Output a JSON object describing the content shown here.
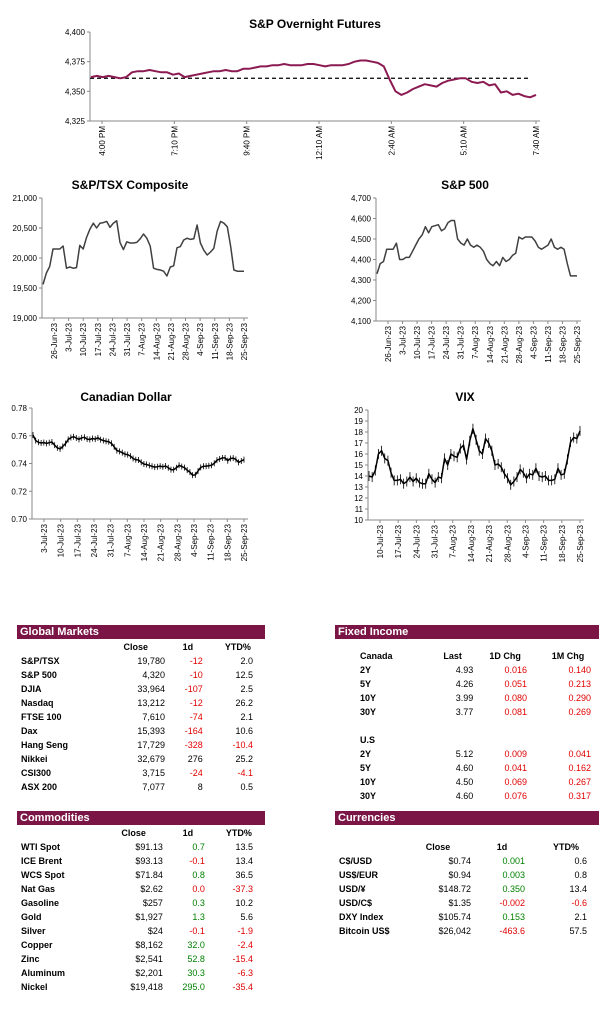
{
  "charts": [
    {
      "id": "sp-overnight",
      "title": "S&P Overnight Futures",
      "type": "line",
      "y_ticks": [
        "4,400",
        "4,375",
        "4,350",
        "4,325"
      ],
      "ylim": [
        4325,
        4400
      ],
      "x_ticks": [
        "4:00 PM",
        "7:10 PM",
        "9:40 PM",
        "12:10 AM",
        "2:40 AM",
        "5:10 AM",
        "7:40 AM"
      ],
      "reference_level": 4361,
      "series": [
        {
          "values": [
            4362,
            4363,
            4362,
            4363,
            4362,
            4361,
            4362,
            4366,
            4367,
            4367,
            4368,
            4367,
            4366,
            4366,
            4364,
            4365,
            4362,
            4363,
            4364,
            4365,
            4366,
            4367,
            4367,
            4368,
            4367,
            4367,
            4369,
            4369,
            4370,
            4371,
            4371,
            4372,
            4372,
            4373,
            4372,
            4372,
            4372,
            4373,
            4373,
            4372,
            4371,
            4372,
            4372,
            4372,
            4373,
            4375,
            4376,
            4376,
            4375,
            4374,
            4371,
            4360,
            4350,
            4347,
            4349,
            4352,
            4354,
            4356,
            4355,
            4354,
            4357,
            4359,
            4360,
            4361,
            4361,
            4358,
            4357,
            4358,
            4355,
            4356,
            4349,
            4350,
            4347,
            4348,
            4346,
            4345,
            4347
          ]
        }
      ],
      "color": "#8c1a52"
    },
    {
      "id": "tsx",
      "title": "S&P/TSX Composite",
      "type": "line",
      "y_ticks": [
        "21,000",
        "20,500",
        "20,000",
        "19,500",
        "19,000"
      ],
      "ylim": [
        19000,
        21000
      ],
      "x_ticks": [
        "26-Jun-23",
        "3-Jul-23",
        "10-Jul-23",
        "17-Jul-23",
        "24-Jul-23",
        "31-Jul-23",
        "7-Aug-23",
        "14-Aug-23",
        "21-Aug-23",
        "28-Aug-23",
        "4-Sep-23",
        "11-Sep-23",
        "18-Sep-23",
        "25-Sep-23"
      ],
      "series": [
        {
          "values": [
            19560,
            19750,
            19860,
            20150,
            20150,
            20150,
            20200,
            19830,
            19850,
            19830,
            19840,
            20210,
            20150,
            20340,
            20480,
            20580,
            20500,
            20580,
            20590,
            20610,
            20510,
            20580,
            20620,
            20260,
            20140,
            20270,
            20250,
            20250,
            20260,
            20320,
            20400,
            20330,
            20200,
            19830,
            19810,
            19800,
            19780,
            19700,
            19850,
            19870,
            20170,
            20190,
            20300,
            20330,
            20310,
            20320,
            20550,
            20250,
            20130,
            20050,
            20100,
            20160,
            20450,
            20610,
            20580,
            20520,
            20200,
            19800,
            19780,
            19780,
            19780
          ]
        }
      ],
      "color": "#404040"
    },
    {
      "id": "sp500",
      "title": "S&P 500",
      "type": "line",
      "y_ticks": [
        "4,700",
        "4,600",
        "4,500",
        "4,400",
        "4,300",
        "4,200",
        "4,100"
      ],
      "ylim": [
        4100,
        4700
      ],
      "x_ticks": [
        "26-Jun-23",
        "3-Jul-23",
        "10-Jul-23",
        "17-Jul-23",
        "24-Jul-23",
        "31-Jul-23",
        "7-Aug-23",
        "14-Aug-23",
        "21-Aug-23",
        "28-Aug-23",
        "4-Sep-23",
        "11-Sep-23",
        "18-Sep-23",
        "25-Sep-23"
      ],
      "series": [
        {
          "values": [
            4330,
            4380,
            4390,
            4450,
            4450,
            4450,
            4480,
            4400,
            4400,
            4410,
            4410,
            4440,
            4470,
            4500,
            4520,
            4560,
            4530,
            4560,
            4565,
            4570,
            4540,
            4550,
            4580,
            4590,
            4590,
            4500,
            4480,
            4470,
            4500,
            4470,
            4460,
            4470,
            4460,
            4440,
            4400,
            4380,
            4370,
            4390,
            4370,
            4410,
            4390,
            4400,
            4420,
            4430,
            4510,
            4500,
            4510,
            4510,
            4510,
            4490,
            4460,
            4450,
            4460,
            4470,
            4500,
            4460,
            4450,
            4460,
            4450,
            4380,
            4320,
            4320,
            4320
          ]
        }
      ],
      "color": "#404040"
    },
    {
      "id": "cad",
      "title": "Canadian Dollar",
      "type": "line",
      "y_ticks": [
        "0.78",
        "0.76",
        "0.74",
        "0.72",
        "0.70"
      ],
      "ylim": [
        0.7,
        0.78
      ],
      "x_ticks": [
        "3-Jul-23",
        "10-Jul-23",
        "17-Jul-23",
        "24-Jul-23",
        "31-Jul-23",
        "7-Aug-23",
        "14-Aug-23",
        "21-Aug-23",
        "28-Aug-23",
        "4-Sep-23",
        "11-Sep-23",
        "18-Sep-23",
        "25-Sep-23"
      ],
      "series": [
        {
          "values": [
            0.7605,
            0.7565,
            0.7553,
            0.7548,
            0.7551,
            0.7545,
            0.755,
            0.7555,
            0.7532,
            0.7513,
            0.7505,
            0.7523,
            0.7543,
            0.7573,
            0.7587,
            0.7593,
            0.7584,
            0.7574,
            0.7585,
            0.7589,
            0.7576,
            0.7573,
            0.758,
            0.7576,
            0.7585,
            0.7572,
            0.7566,
            0.756,
            0.7557,
            0.7545,
            0.752,
            0.7493,
            0.7487,
            0.7478,
            0.7467,
            0.7464,
            0.7453,
            0.7436,
            0.7427,
            0.7425,
            0.7409,
            0.7396,
            0.7393,
            0.7386,
            0.738,
            0.7374,
            0.7377,
            0.7381,
            0.7376,
            0.7382,
            0.7369,
            0.7356,
            0.7355,
            0.7369,
            0.7387,
            0.7378,
            0.737,
            0.7352,
            0.7338,
            0.7316,
            0.7318,
            0.7345,
            0.7372,
            0.738,
            0.7381,
            0.7384,
            0.7387,
            0.7401,
            0.7424,
            0.7432,
            0.744,
            0.744,
            0.742,
            0.7436,
            0.7439,
            0.7429,
            0.7408,
            0.7418,
            0.7428
          ]
        }
      ],
      "color": "#000000"
    },
    {
      "id": "vix",
      "title": "VIX",
      "type": "line",
      "y_ticks": [
        "20",
        "19",
        "18",
        "17",
        "16",
        "15",
        "14",
        "13",
        "12",
        "11",
        "10"
      ],
      "ylim": [
        10,
        20
      ],
      "x_ticks": [
        "10-Jul-23",
        "17-Jul-23",
        "24-Jul-23",
        "31-Jul-23",
        "7-Aug-23",
        "14-Aug-23",
        "21-Aug-23",
        "28-Aug-23",
        "4-Sep-23",
        "11-Sep-23",
        "18-Sep-23",
        "25-Sep-23"
      ],
      "series": [
        {
          "values": [
            14.0,
            13.9,
            14.5,
            16.0,
            16.3,
            15.6,
            15.4,
            14.3,
            13.6,
            13.6,
            13.7,
            13.3,
            13.5,
            13.9,
            13.5,
            13.8,
            13.4,
            13.3,
            13.3,
            14.2,
            13.7,
            13.4,
            13.9,
            13.8,
            15.6,
            15.0,
            16.0,
            15.8,
            15.7,
            16.5,
            16.8,
            15.5,
            17.2,
            18.3,
            17.3,
            16.3,
            16.0,
            17.4,
            17.0,
            16.3,
            15.0,
            15.1,
            14.8,
            14.2,
            13.8,
            13.2,
            13.5,
            13.9,
            14.6,
            14.3,
            13.8,
            14.2,
            14.1,
            14.7,
            14.0,
            13.9,
            14.0,
            13.6,
            13.6,
            13.7,
            14.7,
            14.1,
            14.2,
            15.5,
            17.1,
            17.5,
            17.4,
            18.1
          ]
        }
      ],
      "color": "#000000"
    }
  ],
  "chart_data": [
    {
      "type": "line",
      "title": "S&P Overnight Futures",
      "ylim": [
        4325,
        4400
      ],
      "x_ticks": [
        "4:00 PM",
        "7:10 PM",
        "9:40 PM",
        "12:10 AM",
        "2:40 AM",
        "5:10 AM",
        "7:40 AM"
      ]
    },
    {
      "type": "line",
      "title": "S&P/TSX Composite",
      "ylim": [
        19000,
        21000
      ]
    },
    {
      "type": "line",
      "title": "S&P 500",
      "ylim": [
        4100,
        4700
      ]
    },
    {
      "type": "line",
      "title": "Canadian Dollar",
      "ylim": [
        0.7,
        0.78
      ]
    },
    {
      "type": "line",
      "title": "VIX",
      "ylim": [
        10,
        20
      ]
    }
  ],
  "global_markets": {
    "title": "Global Markets",
    "headers": [
      "Close",
      "1d",
      "YTD%"
    ],
    "rows": [
      {
        "name": "S&P/TSX",
        "close": "19,780",
        "d1": "-12",
        "ytd": "2.0",
        "d1_neg": true,
        "ytd_neg": false
      },
      {
        "name": "S&P 500",
        "close": "4,320",
        "d1": "-10",
        "ytd": "12.5",
        "d1_neg": true,
        "ytd_neg": false
      },
      {
        "name": "DJIA",
        "close": "33,964",
        "d1": "-107",
        "ytd": "2.5",
        "d1_neg": true,
        "ytd_neg": false
      },
      {
        "name": "Nasdaq",
        "close": "13,212",
        "d1": "-12",
        "ytd": "26.2",
        "d1_neg": true,
        "ytd_neg": false
      },
      {
        "name": "FTSE 100",
        "close": "7,610",
        "d1": "-74",
        "ytd": "2.1",
        "d1_neg": true,
        "ytd_neg": false
      },
      {
        "name": "Dax",
        "close": "15,393",
        "d1": "-164",
        "ytd": "10.6",
        "d1_neg": true,
        "ytd_neg": false
      },
      {
        "name": "Hang Seng",
        "close": "17,729",
        "d1": "-328",
        "ytd": "-10.4",
        "d1_neg": true,
        "ytd_neg": true
      },
      {
        "name": "Nikkei",
        "close": "32,679",
        "d1": "276",
        "ytd": "25.2",
        "d1_neg": false,
        "ytd_neg": false
      },
      {
        "name": "CSI300",
        "close": "3,715",
        "d1": "-24",
        "ytd": "-4.1",
        "d1_neg": true,
        "ytd_neg": true
      },
      {
        "name": "ASX 200",
        "close": "7,077",
        "d1": "8",
        "ytd": "0.5",
        "d1_neg": false,
        "ytd_neg": false
      }
    ]
  },
  "fixed_income": {
    "title": "Fixed Income",
    "headers": [
      "Canada",
      "Last",
      "1D Chg",
      "1M Chg"
    ],
    "canada": [
      {
        "name": "2Y",
        "last": "4.93",
        "d1": "0.016",
        "m1": "0.140"
      },
      {
        "name": "5Y",
        "last": "4.26",
        "d1": "0.051",
        "m1": "0.213"
      },
      {
        "name": "10Y",
        "last": "3.99",
        "d1": "0.080",
        "m1": "0.290"
      },
      {
        "name": "30Y",
        "last": "3.77",
        "d1": "0.081",
        "m1": "0.269"
      }
    ],
    "us_label": "U.S",
    "us": [
      {
        "name": "2Y",
        "last": "5.12",
        "d1": "0.009",
        "m1": "0.041"
      },
      {
        "name": "5Y",
        "last": "4.60",
        "d1": "0.041",
        "m1": "0.162"
      },
      {
        "name": "10Y",
        "last": "4.50",
        "d1": "0.069",
        "m1": "0.267"
      },
      {
        "name": "30Y",
        "last": "4.60",
        "d1": "0.076",
        "m1": "0.317"
      }
    ]
  },
  "commodities": {
    "title": "Commodities",
    "headers": [
      "Close",
      "1d",
      "YTD%"
    ],
    "rows": [
      {
        "name": "WTI Spot",
        "close": "$91.13",
        "d1": "0.7",
        "ytd": "13.5",
        "d1_neg": false,
        "ytd_neg": false
      },
      {
        "name": "ICE Brent",
        "close": "$93.13",
        "d1": "-0.1",
        "ytd": "13.4",
        "d1_neg": true,
        "ytd_neg": false
      },
      {
        "name": "WCS Spot",
        "close": "$71.84",
        "d1": "0.8",
        "ytd": "36.5",
        "d1_neg": false,
        "ytd_neg": false
      },
      {
        "name": "Nat Gas",
        "close": "$2.62",
        "d1": "0.0",
        "ytd": "-37.3",
        "d1_neg": true,
        "ytd_neg": true
      },
      {
        "name": "Gasoline",
        "close": "$257",
        "d1": "0.3",
        "ytd": "10.2",
        "d1_neg": false,
        "ytd_neg": false
      },
      {
        "name": "Gold",
        "close": "$1,927",
        "d1": "1.3",
        "ytd": "5.6",
        "d1_neg": false,
        "ytd_neg": false
      },
      {
        "name": "Silver",
        "close": "$24",
        "d1": "-0.1",
        "ytd": "-1.9",
        "d1_neg": true,
        "ytd_neg": true
      },
      {
        "name": "Copper",
        "close": "$8,162",
        "d1": "32.0",
        "ytd": "-2.4",
        "d1_neg": false,
        "ytd_neg": true
      },
      {
        "name": "Zinc",
        "close": "$2,541",
        "d1": "52.8",
        "ytd": "-15.4",
        "d1_neg": false,
        "ytd_neg": true
      },
      {
        "name": "Aluminum",
        "close": "$2,201",
        "d1": "30.3",
        "ytd": "-6.3",
        "d1_neg": false,
        "ytd_neg": true
      },
      {
        "name": "Nickel",
        "close": "$19,418",
        "d1": "295.0",
        "ytd": "-35.4",
        "d1_neg": false,
        "ytd_neg": true
      }
    ]
  },
  "currencies": {
    "title": "Currencies",
    "headers": [
      "Close",
      "1d",
      "YTD%"
    ],
    "rows": [
      {
        "name": "C$/USD",
        "close": "$0.74",
        "d1": "0.001",
        "ytd": "0.6",
        "d1_neg": false,
        "ytd_neg": false
      },
      {
        "name": "US$/EUR",
        "close": "$0.94",
        "d1": "0.003",
        "ytd": "0.8",
        "d1_neg": false,
        "ytd_neg": false
      },
      {
        "name": "USD/¥",
        "close": "$148.72",
        "d1": "0.350",
        "ytd": "13.4",
        "d1_neg": false,
        "ytd_neg": false
      },
      {
        "name": "USD/C$",
        "close": "$1.35",
        "d1": "-0.002",
        "ytd": "-0.6",
        "d1_neg": true,
        "ytd_neg": true
      },
      {
        "name": "DXY Index",
        "close": "$105.74",
        "d1": "0.153",
        "ytd": "2.1",
        "d1_neg": false,
        "ytd_neg": false
      },
      {
        "name": "Bitcoin US$",
        "close": "$26,042",
        "d1": "-463.6",
        "ytd": "57.5",
        "d1_neg": true,
        "ytd_neg": false
      }
    ]
  },
  "colors": {
    "header_bg": "#7b1545",
    "negative": "#e00000",
    "positive": "#008000"
  }
}
